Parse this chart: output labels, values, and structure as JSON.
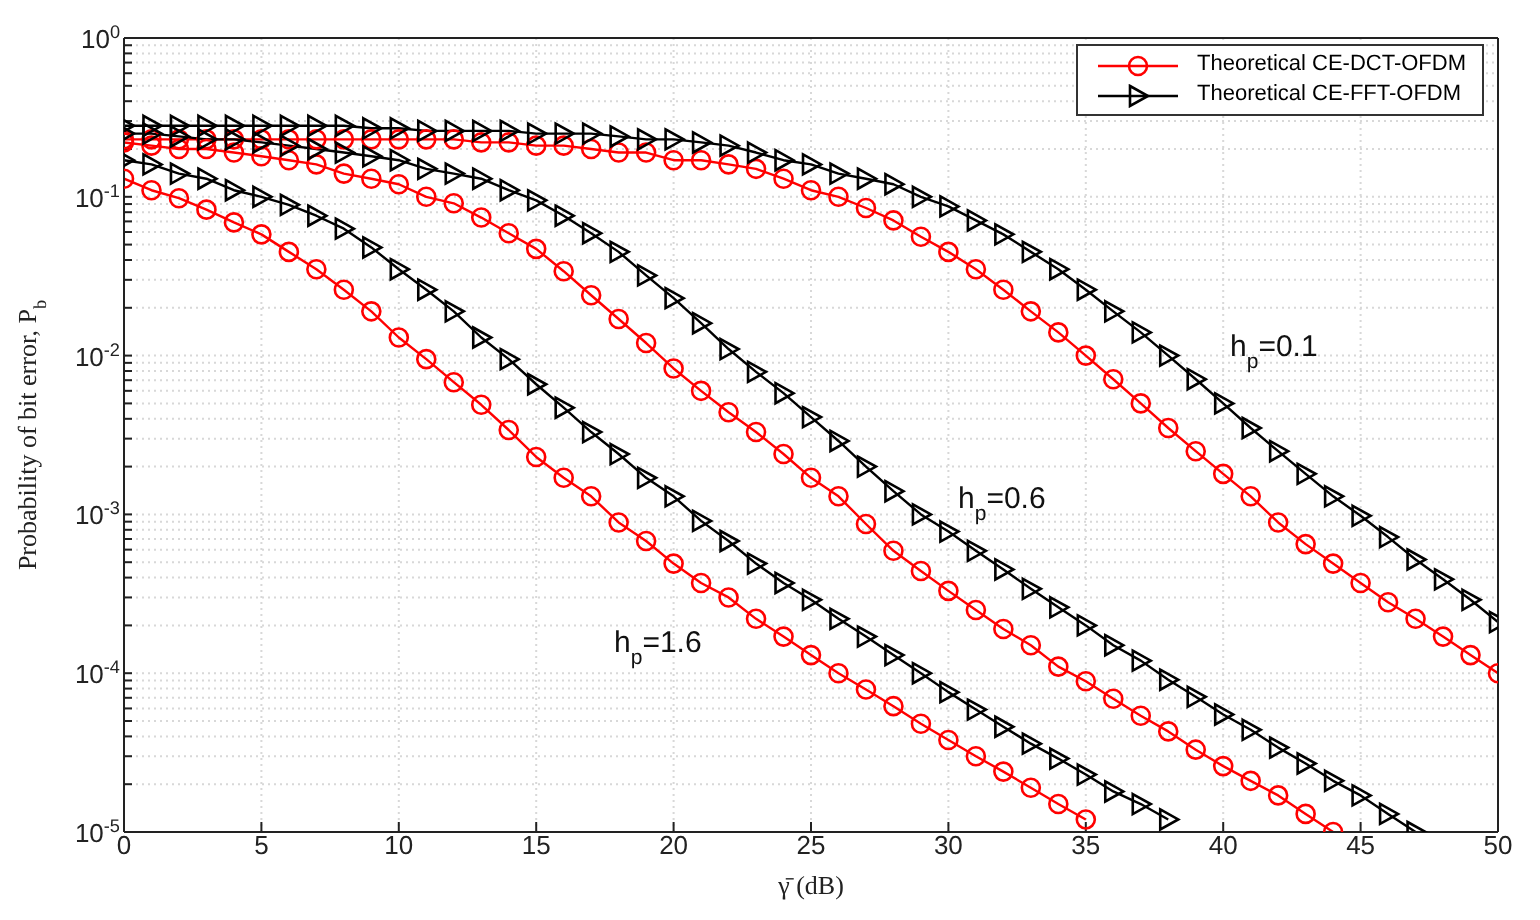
{
  "chart_data": {
    "type": "line",
    "xlabel": "γ̄ (dB)",
    "ylabel": "Probability of bit error, P$_{b}$",
    "log": "y",
    "grid": true,
    "legend": "top right",
    "line_style": "solid",
    "x": [
      0,
      1,
      2,
      3,
      4,
      5,
      6,
      7,
      8,
      9,
      10,
      11,
      12,
      13,
      14,
      15,
      16,
      17,
      18,
      19,
      20,
      21,
      22,
      23,
      24,
      25,
      26,
      27,
      28,
      29,
      30,
      31,
      32,
      33,
      34,
      35,
      36,
      37,
      38,
      39,
      40,
      41,
      42,
      43,
      44,
      45,
      46,
      47,
      48,
      49,
      50
    ],
    "xlim": [
      0,
      50
    ],
    "xticks": [
      0,
      5,
      10,
      15,
      20,
      25,
      30,
      35,
      40,
      45,
      50
    ],
    "ylim": [
      1e-05,
      1
    ],
    "yticks": [
      {
        "value": 1e-05,
        "label": "10$^{-5}$"
      },
      {
        "value": 2e-05,
        "label": null
      },
      {
        "value": 3e-05,
        "label": null
      },
      {
        "value": 4e-05,
        "label": null
      },
      {
        "value": 5e-05,
        "label": null
      },
      {
        "value": 6e-05,
        "label": null
      },
      {
        "value": 7e-05,
        "label": null
      },
      {
        "value": 8e-05,
        "label": null
      },
      {
        "value": 9e-05,
        "label": null
      },
      {
        "value": 0.0001,
        "label": "10$^{-4}$"
      },
      {
        "value": 0.0002,
        "label": null
      },
      {
        "value": 0.0003,
        "label": null
      },
      {
        "value": 0.0004,
        "label": null
      },
      {
        "value": 0.0005,
        "label": null
      },
      {
        "value": 0.0006,
        "label": null
      },
      {
        "value": 0.0007,
        "label": null
      },
      {
        "value": 0.0008,
        "label": null
      },
      {
        "value": 0.0009,
        "label": null
      },
      {
        "value": 0.001,
        "label": "10$^{-3}$"
      },
      {
        "value": 0.002,
        "label": null
      },
      {
        "value": 0.003,
        "label": null
      },
      {
        "value": 0.004,
        "label": null
      },
      {
        "value": 0.005,
        "label": null
      },
      {
        "value": 0.006,
        "label": null
      },
      {
        "value": 0.007,
        "label": null
      },
      {
        "value": 0.008,
        "label": null
      },
      {
        "value": 0.009,
        "label": null
      },
      {
        "value": 0.01,
        "label": "10$^{-2}$"
      },
      {
        "value": 0.02,
        "label": null
      },
      {
        "value": 0.03,
        "label": null
      },
      {
        "value": 0.04,
        "label": null
      },
      {
        "value": 0.05,
        "label": null
      },
      {
        "value": 0.06,
        "label": null
      },
      {
        "value": 0.07,
        "label": null
      },
      {
        "value": 0.08,
        "label": null
      },
      {
        "value": 0.09,
        "label": null
      },
      {
        "value": 0.1,
        "label": "10$^{-1}$"
      },
      {
        "value": 0.2,
        "label": null
      },
      {
        "value": 0.3,
        "label": null
      },
      {
        "value": 0.4,
        "label": null
      },
      {
        "value": 0.5,
        "label": null
      },
      {
        "value": 0.6,
        "label": null
      },
      {
        "value": 0.7,
        "label": null
      },
      {
        "value": 0.8,
        "label": null
      },
      {
        "value": 0.9,
        "label": null
      },
      {
        "value": 1,
        "label": "10$^{0}$"
      }
    ],
    "series": [
      {
        "name": "Theoretical CE-DCT-OFDM",
        "color": "#ff0000",
        "marker": "circle",
        "values": [
          0.23,
          0.23,
          0.23,
          0.23,
          0.23,
          0.23,
          0.23,
          0.23,
          0.23,
          0.23,
          0.23,
          0.23,
          0.23,
          0.22,
          0.22,
          0.21,
          0.21,
          0.2,
          0.19,
          0.19,
          0.17,
          0.17,
          0.16,
          0.15,
          0.13,
          0.11,
          0.1,
          0.085,
          0.071,
          0.056,
          0.045,
          0.035,
          0.026,
          0.019,
          0.014,
          0.01,
          0.0071,
          0.005,
          0.0035,
          0.0025,
          0.0018,
          0.0013,
          0.00089,
          0.00065,
          0.00049,
          0.00037,
          0.00028,
          0.00022,
          0.00017,
          0.00013,
          0.0001
        ]
      },
      {
        "name": "Theoretical CE-FFT-OFDM",
        "color": "#000000",
        "marker": "triangle",
        "values": [
          0.28,
          0.28,
          0.28,
          0.28,
          0.28,
          0.28,
          0.28,
          0.28,
          0.28,
          0.27,
          0.27,
          0.26,
          0.26,
          0.26,
          0.26,
          0.25,
          0.25,
          0.25,
          0.24,
          0.23,
          0.23,
          0.22,
          0.21,
          0.19,
          0.17,
          0.16,
          0.14,
          0.13,
          0.12,
          0.1,
          0.087,
          0.071,
          0.058,
          0.045,
          0.035,
          0.026,
          0.019,
          0.014,
          0.01,
          0.0071,
          0.005,
          0.0035,
          0.0025,
          0.0018,
          0.0013,
          0.00098,
          0.00072,
          0.00052,
          0.00039,
          0.00029,
          0.00021
        ]
      },
      {
        "color": "#ff0000",
        "marker": "circle",
        "values": [
          0.22,
          0.21,
          0.2,
          0.2,
          0.19,
          0.18,
          0.17,
          0.16,
          0.14,
          0.13,
          0.12,
          0.1,
          0.091,
          0.074,
          0.059,
          0.047,
          0.034,
          0.024,
          0.017,
          0.012,
          0.0083,
          0.006,
          0.0044,
          0.0033,
          0.0024,
          0.0017,
          0.0013,
          0.00087,
          0.00059,
          0.00044,
          0.00033,
          0.00025,
          0.00019,
          0.00015,
          0.00011,
          8.9e-05,
          6.9e-05,
          5.4e-05,
          4.3e-05,
          3.3e-05,
          2.6e-05,
          2.1e-05,
          1.7e-05,
          1.3e-05,
          1e-05,
          null,
          null,
          null,
          null,
          null,
          null
        ]
      },
      {
        "color": "#000000",
        "marker": "triangle",
        "values": [
          0.25,
          0.25,
          0.24,
          0.23,
          0.23,
          0.22,
          0.21,
          0.2,
          0.19,
          0.18,
          0.17,
          0.15,
          0.14,
          0.13,
          0.11,
          0.095,
          0.076,
          0.059,
          0.045,
          0.032,
          0.023,
          0.016,
          0.011,
          0.0079,
          0.0058,
          0.0041,
          0.0029,
          0.002,
          0.0014,
          0.001,
          0.00078,
          0.00059,
          0.00045,
          0.00034,
          0.00026,
          0.0002,
          0.00015,
          0.00012,
          9.1e-05,
          7.1e-05,
          5.5e-05,
          4.4e-05,
          3.4e-05,
          2.7e-05,
          2.1e-05,
          1.7e-05,
          1.3e-05,
          1e-05,
          null,
          null,
          null
        ]
      },
      {
        "color": "#ff0000",
        "marker": "circle",
        "values": [
          0.13,
          0.11,
          0.098,
          0.083,
          0.069,
          0.058,
          0.045,
          0.035,
          0.026,
          0.019,
          0.013,
          0.0095,
          0.0068,
          0.0049,
          0.0034,
          0.0023,
          0.0017,
          0.0013,
          0.00089,
          0.00068,
          0.00049,
          0.00037,
          0.0003,
          0.00022,
          0.00017,
          0.00013,
          0.0001,
          7.9e-05,
          6.2e-05,
          4.8e-05,
          3.8e-05,
          3e-05,
          2.4e-05,
          1.9e-05,
          1.5e-05,
          1.2e-05,
          null,
          null,
          null,
          null,
          null,
          null,
          null,
          null,
          null,
          null,
          null,
          null,
          null,
          null,
          null
        ]
      },
      {
        "color": "#000000",
        "marker": "triangle",
        "values": [
          0.17,
          0.16,
          0.14,
          0.13,
          0.11,
          0.1,
          0.089,
          0.076,
          0.063,
          0.048,
          0.035,
          0.026,
          0.019,
          0.013,
          0.0095,
          0.0066,
          0.0047,
          0.0033,
          0.0024,
          0.0017,
          0.0013,
          0.00091,
          0.00068,
          0.00049,
          0.00037,
          0.00029,
          0.00022,
          0.00017,
          0.00013,
          0.0001,
          7.6e-05,
          5.9e-05,
          4.6e-05,
          3.6e-05,
          2.9e-05,
          2.3e-05,
          1.8e-05,
          1.5e-05,
          1.2e-05,
          null,
          null,
          null,
          null,
          null,
          null,
          null,
          null,
          null,
          null,
          null,
          null
        ]
      }
    ],
    "annotations": [
      "h$_{p}$=0.1",
      "h$_{p}$=0.6",
      "h$_{p}$=1.6"
    ]
  }
}
